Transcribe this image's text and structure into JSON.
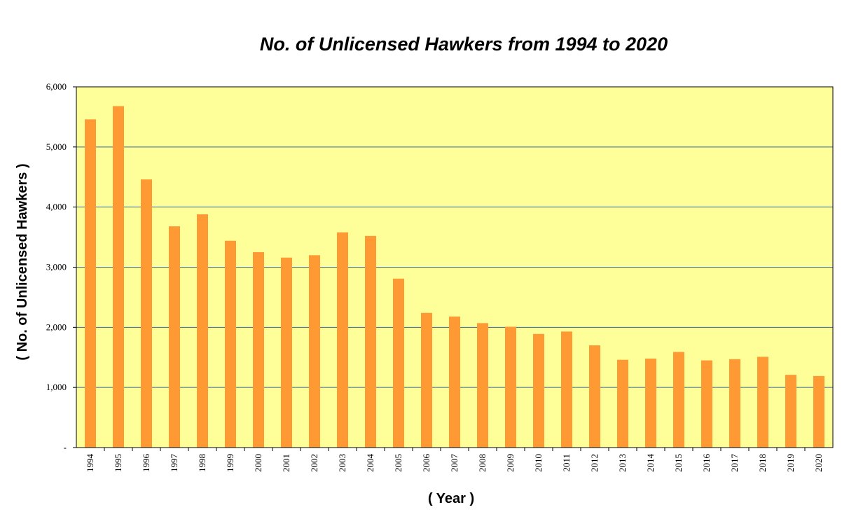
{
  "chart_data": {
    "type": "bar",
    "title": "No. of Unlicensed Hawkers from 1994 to 2020",
    "xlabel": "( Year )",
    "ylabel": "( No. of  Unlicensed Hawkers )",
    "categories": [
      "1994",
      "1995",
      "1996",
      "1997",
      "1998",
      "1999",
      "2000",
      "2001",
      "2002",
      "2003",
      "2004",
      "2005",
      "2006",
      "2007",
      "2008",
      "2009",
      "2010",
      "2011",
      "2012",
      "2013",
      "2014",
      "2015",
      "2016",
      "2017",
      "2018",
      "2019",
      "2020"
    ],
    "series": [
      {
        "values": [
          5460,
          5680,
          4460,
          3680,
          3880,
          3440,
          3250,
          3160,
          3200,
          3580,
          3520,
          2810,
          2240,
          2180,
          2070,
          2010,
          1890,
          1930,
          1700,
          1460,
          1480,
          1590,
          1450,
          1470,
          1510,
          1210,
          1190
        ]
      }
    ],
    "ylim": [
      0,
      6000
    ],
    "yticks": [
      0,
      1000,
      2000,
      3000,
      4000,
      5000,
      6000
    ],
    "ytick_labels": [
      "-",
      "1,000",
      "2,000",
      "3,000",
      "4,000",
      "5,000",
      "6,000"
    ],
    "grid": true,
    "colors": {
      "bar": "#FF9933",
      "plot_background": "#FFFF99",
      "gridline": "#336699"
    }
  }
}
